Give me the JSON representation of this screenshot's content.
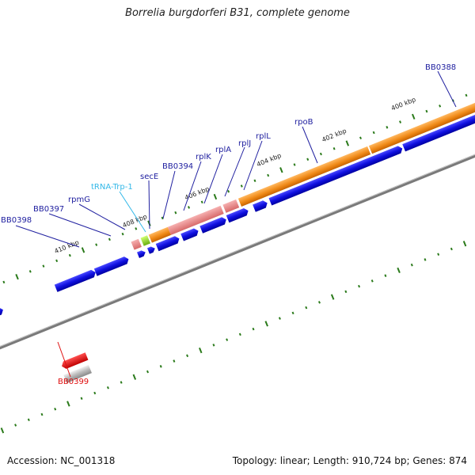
{
  "title": "Borrelia burgdorferi B31, complete genome",
  "footer": {
    "accession": "Accession: NC_001318",
    "summary": "Topology: linear; Length: 910,724 bp; Genes: 874"
  },
  "colors": {
    "gene_blue": "#1010e0",
    "rna_orange": "#f08a18",
    "rna_pink": "#e88080",
    "secE_green": "#9ee02a",
    "trna_label": "#33b8e8",
    "gene_label": "#2020a0",
    "red_gene": "#e01010",
    "tick_green": "#2a7a1a"
  },
  "kbp_labels": [
    "400 kbp",
    "402 kbp",
    "404 kbp",
    "406 kbp",
    "408 kbp",
    "410 kbp"
  ],
  "gene_labels": {
    "bb0388": "BB0388",
    "rpob": "rpoB",
    "rpll": "rplL",
    "rplj": "rplJ",
    "rpla": "rplA",
    "rplk": "rplK",
    "bb0394": "BB0394",
    "sece": "secE",
    "trna": "tRNA-Trp-1",
    "rpmg": "rpmG",
    "bb0397": "BB0397",
    "bb0398": "BB0398",
    "bb0399": "BB0399"
  }
}
